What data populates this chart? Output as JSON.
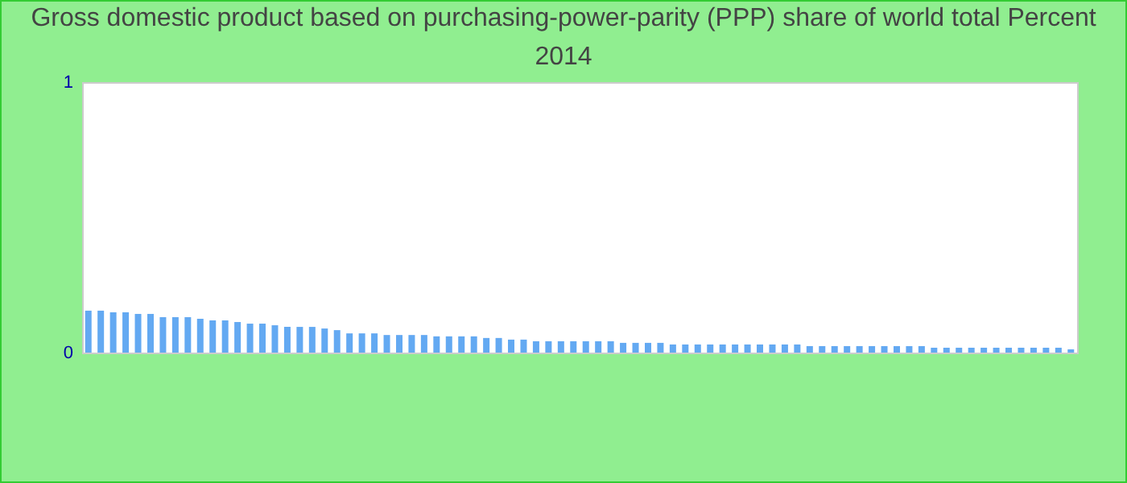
{
  "chart_data": {
    "type": "bar",
    "title": "Gross domestic product based on purchasing-power-parity (PPP) share of world total  Percent 2014",
    "categories": [
      null,
      null,
      null,
      null,
      null,
      null,
      null,
      null,
      null,
      null,
      null,
      null,
      null,
      null,
      null,
      null,
      null,
      null,
      null,
      null,
      null,
      null,
      null,
      null,
      null,
      null,
      null,
      null,
      null,
      null,
      null,
      null,
      null,
      null,
      null,
      null,
      null,
      null,
      null,
      null,
      null,
      null,
      null,
      null,
      null,
      null,
      null,
      null,
      null,
      null,
      null,
      null,
      null,
      null,
      null,
      null,
      null,
      null,
      null,
      null,
      null,
      null,
      null,
      null,
      null,
      null,
      null,
      null,
      null,
      null,
      null,
      null,
      null,
      null,
      null,
      null,
      null,
      null,
      null,
      null
    ],
    "values": [
      0.155,
      0.155,
      0.149,
      0.149,
      0.143,
      0.143,
      0.131,
      0.131,
      0.131,
      0.125,
      0.119,
      0.119,
      0.113,
      0.107,
      0.107,
      0.101,
      0.095,
      0.095,
      0.095,
      0.089,
      0.083,
      0.071,
      0.071,
      0.071,
      0.065,
      0.065,
      0.065,
      0.065,
      0.06,
      0.06,
      0.06,
      0.06,
      0.054,
      0.054,
      0.048,
      0.048,
      0.042,
      0.042,
      0.042,
      0.042,
      0.042,
      0.042,
      0.042,
      0.036,
      0.036,
      0.036,
      0.036,
      0.03,
      0.03,
      0.03,
      0.03,
      0.03,
      0.03,
      0.03,
      0.03,
      0.03,
      0.03,
      0.03,
      0.024,
      0.024,
      0.024,
      0.024,
      0.024,
      0.024,
      0.024,
      0.024,
      0.024,
      0.024,
      0.018,
      0.018,
      0.018,
      0.018,
      0.018,
      0.018,
      0.018,
      0.018,
      0.018,
      0.018,
      0.018,
      0.012
    ],
    "color": "#63a9f2",
    "ylim": [
      0,
      1
    ],
    "yticks": [
      0,
      1
    ],
    "grid": false
  }
}
